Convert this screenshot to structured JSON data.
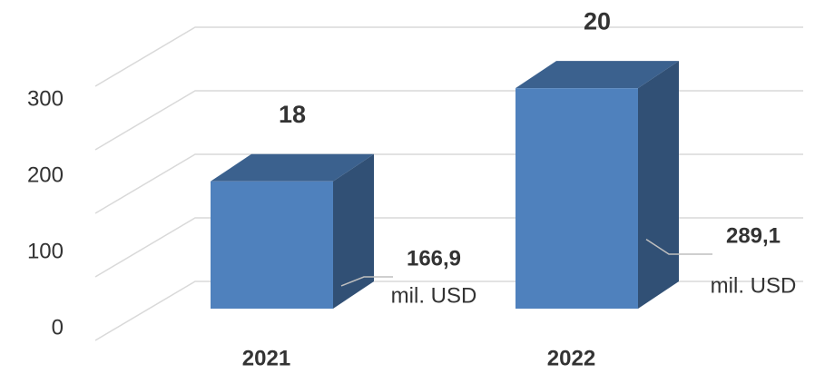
{
  "chart_data": {
    "type": "bar3d",
    "categories": [
      "2021",
      "2022"
    ],
    "values": [
      166.9,
      289.1
    ],
    "value_labels": [
      "166,9",
      "289,1"
    ],
    "value_unit": "mil. USD",
    "counts": [
      18,
      20
    ],
    "color": "#4f81bd",
    "ylim": [
      0,
      400
    ],
    "yticks": [
      0,
      100,
      200,
      300
    ],
    "grid": true
  }
}
